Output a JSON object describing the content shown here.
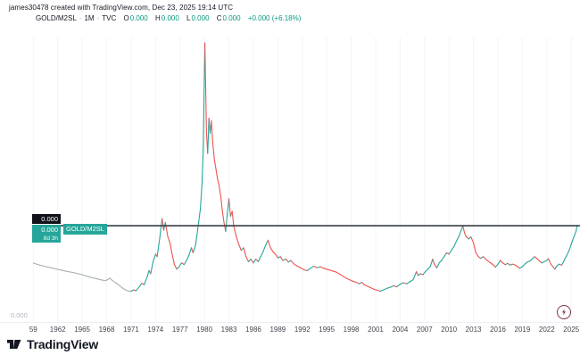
{
  "header": {
    "attribution": "james30478 created with TradingView.com, Dec 23, 2025 19:14 UTC",
    "symbol": "GOLD/M2SL",
    "interval": "1M",
    "exchange": "TVC",
    "sep": "·",
    "ohlc": {
      "o_label": "O",
      "o": "0.000",
      "h_label": "H",
      "h": "0.000",
      "l_label": "L",
      "l": "0.000",
      "c_label": "C",
      "c": "0.000",
      "change": "+0.000 (+6.18%)"
    }
  },
  "price_labels": {
    "line_price": "0.000",
    "current_price": "0.000",
    "countdown": "8d 3h",
    "symbol_tag": "GOLD/M2SL",
    "axis_bottom": "0.000"
  },
  "footer": {
    "brand": "TradingView"
  },
  "chart_data": {
    "type": "line",
    "title": "GOLD/M2SL ratio, monthly, 1959-2025",
    "xlabel": "",
    "ylabel": "",
    "x_range": [
      1959,
      2026
    ],
    "values_normalized_to_1980_peak": true,
    "price_line_level": 0.273,
    "grid": "vertical-only",
    "legend": "none",
    "x_ticks": [
      {
        "label": "59",
        "year": 1959
      },
      {
        "label": "1962",
        "year": 1962
      },
      {
        "label": "1965",
        "year": 1965
      },
      {
        "label": "1968",
        "year": 1968
      },
      {
        "label": "1971",
        "year": 1971
      },
      {
        "label": "1974",
        "year": 1974
      },
      {
        "label": "1977",
        "year": 1977
      },
      {
        "label": "1980",
        "year": 1980
      },
      {
        "label": "1983",
        "year": 1983
      },
      {
        "label": "1986",
        "year": 1986
      },
      {
        "label": "1989",
        "year": 1989
      },
      {
        "label": "1992",
        "year": 1992
      },
      {
        "label": "1995",
        "year": 1995
      },
      {
        "label": "1998",
        "year": 1998
      },
      {
        "label": "2001",
        "year": 2001
      },
      {
        "label": "2004",
        "year": 2004
      },
      {
        "label": "2007",
        "year": 2007
      },
      {
        "label": "2010",
        "year": 2010
      },
      {
        "label": "2013",
        "year": 2013
      },
      {
        "label": "2016",
        "year": 2016
      },
      {
        "label": "2019",
        "year": 2019
      },
      {
        "label": "2022",
        "year": 2022
      },
      {
        "label": "2025",
        "year": 2025
      }
    ],
    "colors": {
      "up": "#26a69a",
      "down": "#ef5350",
      "neutral_early": "#a9b1b0",
      "price_line": "#3a3e47",
      "grid": "#f2f4f7"
    },
    "color_split_year": 1971,
    "points": [
      [
        1959.0,
        0.124
      ],
      [
        1959.4,
        0.12
      ],
      [
        1959.8,
        0.116
      ],
      [
        1960.2,
        0.113
      ],
      [
        1960.6,
        0.11
      ],
      [
        1961.0,
        0.107
      ],
      [
        1961.5,
        0.103
      ],
      [
        1962.0,
        0.099
      ],
      [
        1962.5,
        0.096
      ],
      [
        1963.0,
        0.092
      ],
      [
        1963.5,
        0.089
      ],
      [
        1964.0,
        0.086
      ],
      [
        1964.5,
        0.082
      ],
      [
        1965.0,
        0.078
      ],
      [
        1965.5,
        0.073
      ],
      [
        1966.0,
        0.068
      ],
      [
        1966.5,
        0.064
      ],
      [
        1967.0,
        0.06
      ],
      [
        1967.4,
        0.057
      ],
      [
        1967.8,
        0.054
      ],
      [
        1968.1,
        0.058
      ],
      [
        1968.4,
        0.064
      ],
      [
        1968.7,
        0.055
      ],
      [
        1969.0,
        0.048
      ],
      [
        1969.3,
        0.042
      ],
      [
        1969.6,
        0.034
      ],
      [
        1970.0,
        0.024
      ],
      [
        1970.4,
        0.016
      ],
      [
        1970.8,
        0.013
      ],
      [
        1971.0,
        0.012
      ],
      [
        1971.3,
        0.018
      ],
      [
        1971.6,
        0.014
      ],
      [
        1972.0,
        0.03
      ],
      [
        1972.3,
        0.044
      ],
      [
        1972.6,
        0.038
      ],
      [
        1973.0,
        0.072
      ],
      [
        1973.2,
        0.095
      ],
      [
        1973.4,
        0.082
      ],
      [
        1973.7,
        0.13
      ],
      [
        1974.0,
        0.16
      ],
      [
        1974.2,
        0.15
      ],
      [
        1974.5,
        0.22
      ],
      [
        1974.8,
        0.301
      ],
      [
        1975.0,
        0.255
      ],
      [
        1975.2,
        0.285
      ],
      [
        1975.5,
        0.23
      ],
      [
        1975.8,
        0.2
      ],
      [
        1976.0,
        0.165
      ],
      [
        1976.3,
        0.12
      ],
      [
        1976.6,
        0.1
      ],
      [
        1976.9,
        0.11
      ],
      [
        1977.2,
        0.125
      ],
      [
        1977.5,
        0.118
      ],
      [
        1977.8,
        0.135
      ],
      [
        1978.1,
        0.155
      ],
      [
        1978.4,
        0.185
      ],
      [
        1978.6,
        0.165
      ],
      [
        1978.9,
        0.195
      ],
      [
        1979.1,
        0.24
      ],
      [
        1979.3,
        0.29
      ],
      [
        1979.5,
        0.34
      ],
      [
        1979.7,
        0.44
      ],
      [
        1979.85,
        0.58
      ],
      [
        1979.95,
        0.8
      ],
      [
        1980.05,
        1.0
      ],
      [
        1980.15,
        0.82
      ],
      [
        1980.25,
        0.64
      ],
      [
        1980.4,
        0.56
      ],
      [
        1980.55,
        0.7
      ],
      [
        1980.7,
        0.64
      ],
      [
        1980.85,
        0.69
      ],
      [
        1981.0,
        0.61
      ],
      [
        1981.2,
        0.54
      ],
      [
        1981.4,
        0.5
      ],
      [
        1981.6,
        0.46
      ],
      [
        1981.8,
        0.43
      ],
      [
        1982.0,
        0.39
      ],
      [
        1982.2,
        0.33
      ],
      [
        1982.4,
        0.285
      ],
      [
        1982.6,
        0.25
      ],
      [
        1982.8,
        0.32
      ],
      [
        1983.0,
        0.38
      ],
      [
        1983.2,
        0.31
      ],
      [
        1983.4,
        0.33
      ],
      [
        1983.6,
        0.27
      ],
      [
        1983.9,
        0.23
      ],
      [
        1984.2,
        0.2
      ],
      [
        1984.5,
        0.175
      ],
      [
        1984.8,
        0.185
      ],
      [
        1985.1,
        0.15
      ],
      [
        1985.4,
        0.13
      ],
      [
        1985.7,
        0.14
      ],
      [
        1986.0,
        0.125
      ],
      [
        1986.3,
        0.14
      ],
      [
        1986.6,
        0.13
      ],
      [
        1986.9,
        0.15
      ],
      [
        1987.2,
        0.17
      ],
      [
        1987.5,
        0.195
      ],
      [
        1987.8,
        0.215
      ],
      [
        1988.1,
        0.185
      ],
      [
        1988.4,
        0.17
      ],
      [
        1988.7,
        0.16
      ],
      [
        1989.0,
        0.145
      ],
      [
        1989.3,
        0.15
      ],
      [
        1989.6,
        0.135
      ],
      [
        1990.0,
        0.14
      ],
      [
        1990.3,
        0.128
      ],
      [
        1990.6,
        0.135
      ],
      [
        1991.0,
        0.12
      ],
      [
        1991.4,
        0.112
      ],
      [
        1991.8,
        0.105
      ],
      [
        1992.2,
        0.098
      ],
      [
        1992.6,
        0.094
      ],
      [
        1993.0,
        0.103
      ],
      [
        1993.4,
        0.112
      ],
      [
        1993.8,
        0.106
      ],
      [
        1994.2,
        0.11
      ],
      [
        1994.6,
        0.104
      ],
      [
        1995.0,
        0.1
      ],
      [
        1995.4,
        0.096
      ],
      [
        1995.8,
        0.092
      ],
      [
        1996.2,
        0.088
      ],
      [
        1996.6,
        0.08
      ],
      [
        1997.0,
        0.072
      ],
      [
        1997.4,
        0.064
      ],
      [
        1997.8,
        0.058
      ],
      [
        1998.2,
        0.052
      ],
      [
        1998.6,
        0.048
      ],
      [
        1999.0,
        0.042
      ],
      [
        1999.3,
        0.048
      ],
      [
        1999.6,
        0.038
      ],
      [
        2000.0,
        0.032
      ],
      [
        2000.4,
        0.026
      ],
      [
        2000.8,
        0.02
      ],
      [
        2001.2,
        0.016
      ],
      [
        2001.6,
        0.013
      ],
      [
        2002.0,
        0.018
      ],
      [
        2002.4,
        0.024
      ],
      [
        2002.8,
        0.028
      ],
      [
        2003.2,
        0.034
      ],
      [
        2003.6,
        0.03
      ],
      [
        2004.0,
        0.04
      ],
      [
        2004.4,
        0.046
      ],
      [
        2004.8,
        0.042
      ],
      [
        2005.2,
        0.05
      ],
      [
        2005.6,
        0.058
      ],
      [
        2006.0,
        0.09
      ],
      [
        2006.2,
        0.075
      ],
      [
        2006.5,
        0.082
      ],
      [
        2006.8,
        0.078
      ],
      [
        2007.1,
        0.09
      ],
      [
        2007.4,
        0.1
      ],
      [
        2007.7,
        0.11
      ],
      [
        2008.0,
        0.14
      ],
      [
        2008.2,
        0.12
      ],
      [
        2008.5,
        0.105
      ],
      [
        2008.8,
        0.125
      ],
      [
        2009.1,
        0.135
      ],
      [
        2009.4,
        0.15
      ],
      [
        2009.7,
        0.165
      ],
      [
        2010.0,
        0.16
      ],
      [
        2010.3,
        0.175
      ],
      [
        2010.6,
        0.19
      ],
      [
        2010.9,
        0.21
      ],
      [
        2011.2,
        0.23
      ],
      [
        2011.5,
        0.255
      ],
      [
        2011.7,
        0.272
      ],
      [
        2011.9,
        0.245
      ],
      [
        2012.1,
        0.23
      ],
      [
        2012.4,
        0.22
      ],
      [
        2012.7,
        0.228
      ],
      [
        2013.0,
        0.205
      ],
      [
        2013.3,
        0.165
      ],
      [
        2013.6,
        0.15
      ],
      [
        2013.9,
        0.143
      ],
      [
        2014.2,
        0.15
      ],
      [
        2014.5,
        0.14
      ],
      [
        2014.8,
        0.132
      ],
      [
        2015.1,
        0.125
      ],
      [
        2015.4,
        0.118
      ],
      [
        2015.7,
        0.108
      ],
      [
        2016.0,
        0.12
      ],
      [
        2016.3,
        0.135
      ],
      [
        2016.6,
        0.125
      ],
      [
        2016.9,
        0.118
      ],
      [
        2017.2,
        0.123
      ],
      [
        2017.5,
        0.116
      ],
      [
        2017.8,
        0.12
      ],
      [
        2018.1,
        0.117
      ],
      [
        2018.4,
        0.11
      ],
      [
        2018.7,
        0.104
      ],
      [
        2019.0,
        0.11
      ],
      [
        2019.3,
        0.12
      ],
      [
        2019.6,
        0.128
      ],
      [
        2019.9,
        0.132
      ],
      [
        2020.2,
        0.14
      ],
      [
        2020.5,
        0.15
      ],
      [
        2020.8,
        0.142
      ],
      [
        2021.1,
        0.132
      ],
      [
        2021.4,
        0.125
      ],
      [
        2021.7,
        0.13
      ],
      [
        2022.0,
        0.135
      ],
      [
        2022.2,
        0.142
      ],
      [
        2022.5,
        0.12
      ],
      [
        2022.8,
        0.108
      ],
      [
        2023.0,
        0.1
      ],
      [
        2023.2,
        0.112
      ],
      [
        2023.5,
        0.12
      ],
      [
        2023.8,
        0.116
      ],
      [
        2024.0,
        0.126
      ],
      [
        2024.2,
        0.14
      ],
      [
        2024.4,
        0.152
      ],
      [
        2024.6,
        0.165
      ],
      [
        2024.8,
        0.18
      ],
      [
        2025.0,
        0.2
      ],
      [
        2025.2,
        0.218
      ],
      [
        2025.4,
        0.235
      ],
      [
        2025.6,
        0.252
      ],
      [
        2025.7,
        0.273
      ]
    ]
  }
}
